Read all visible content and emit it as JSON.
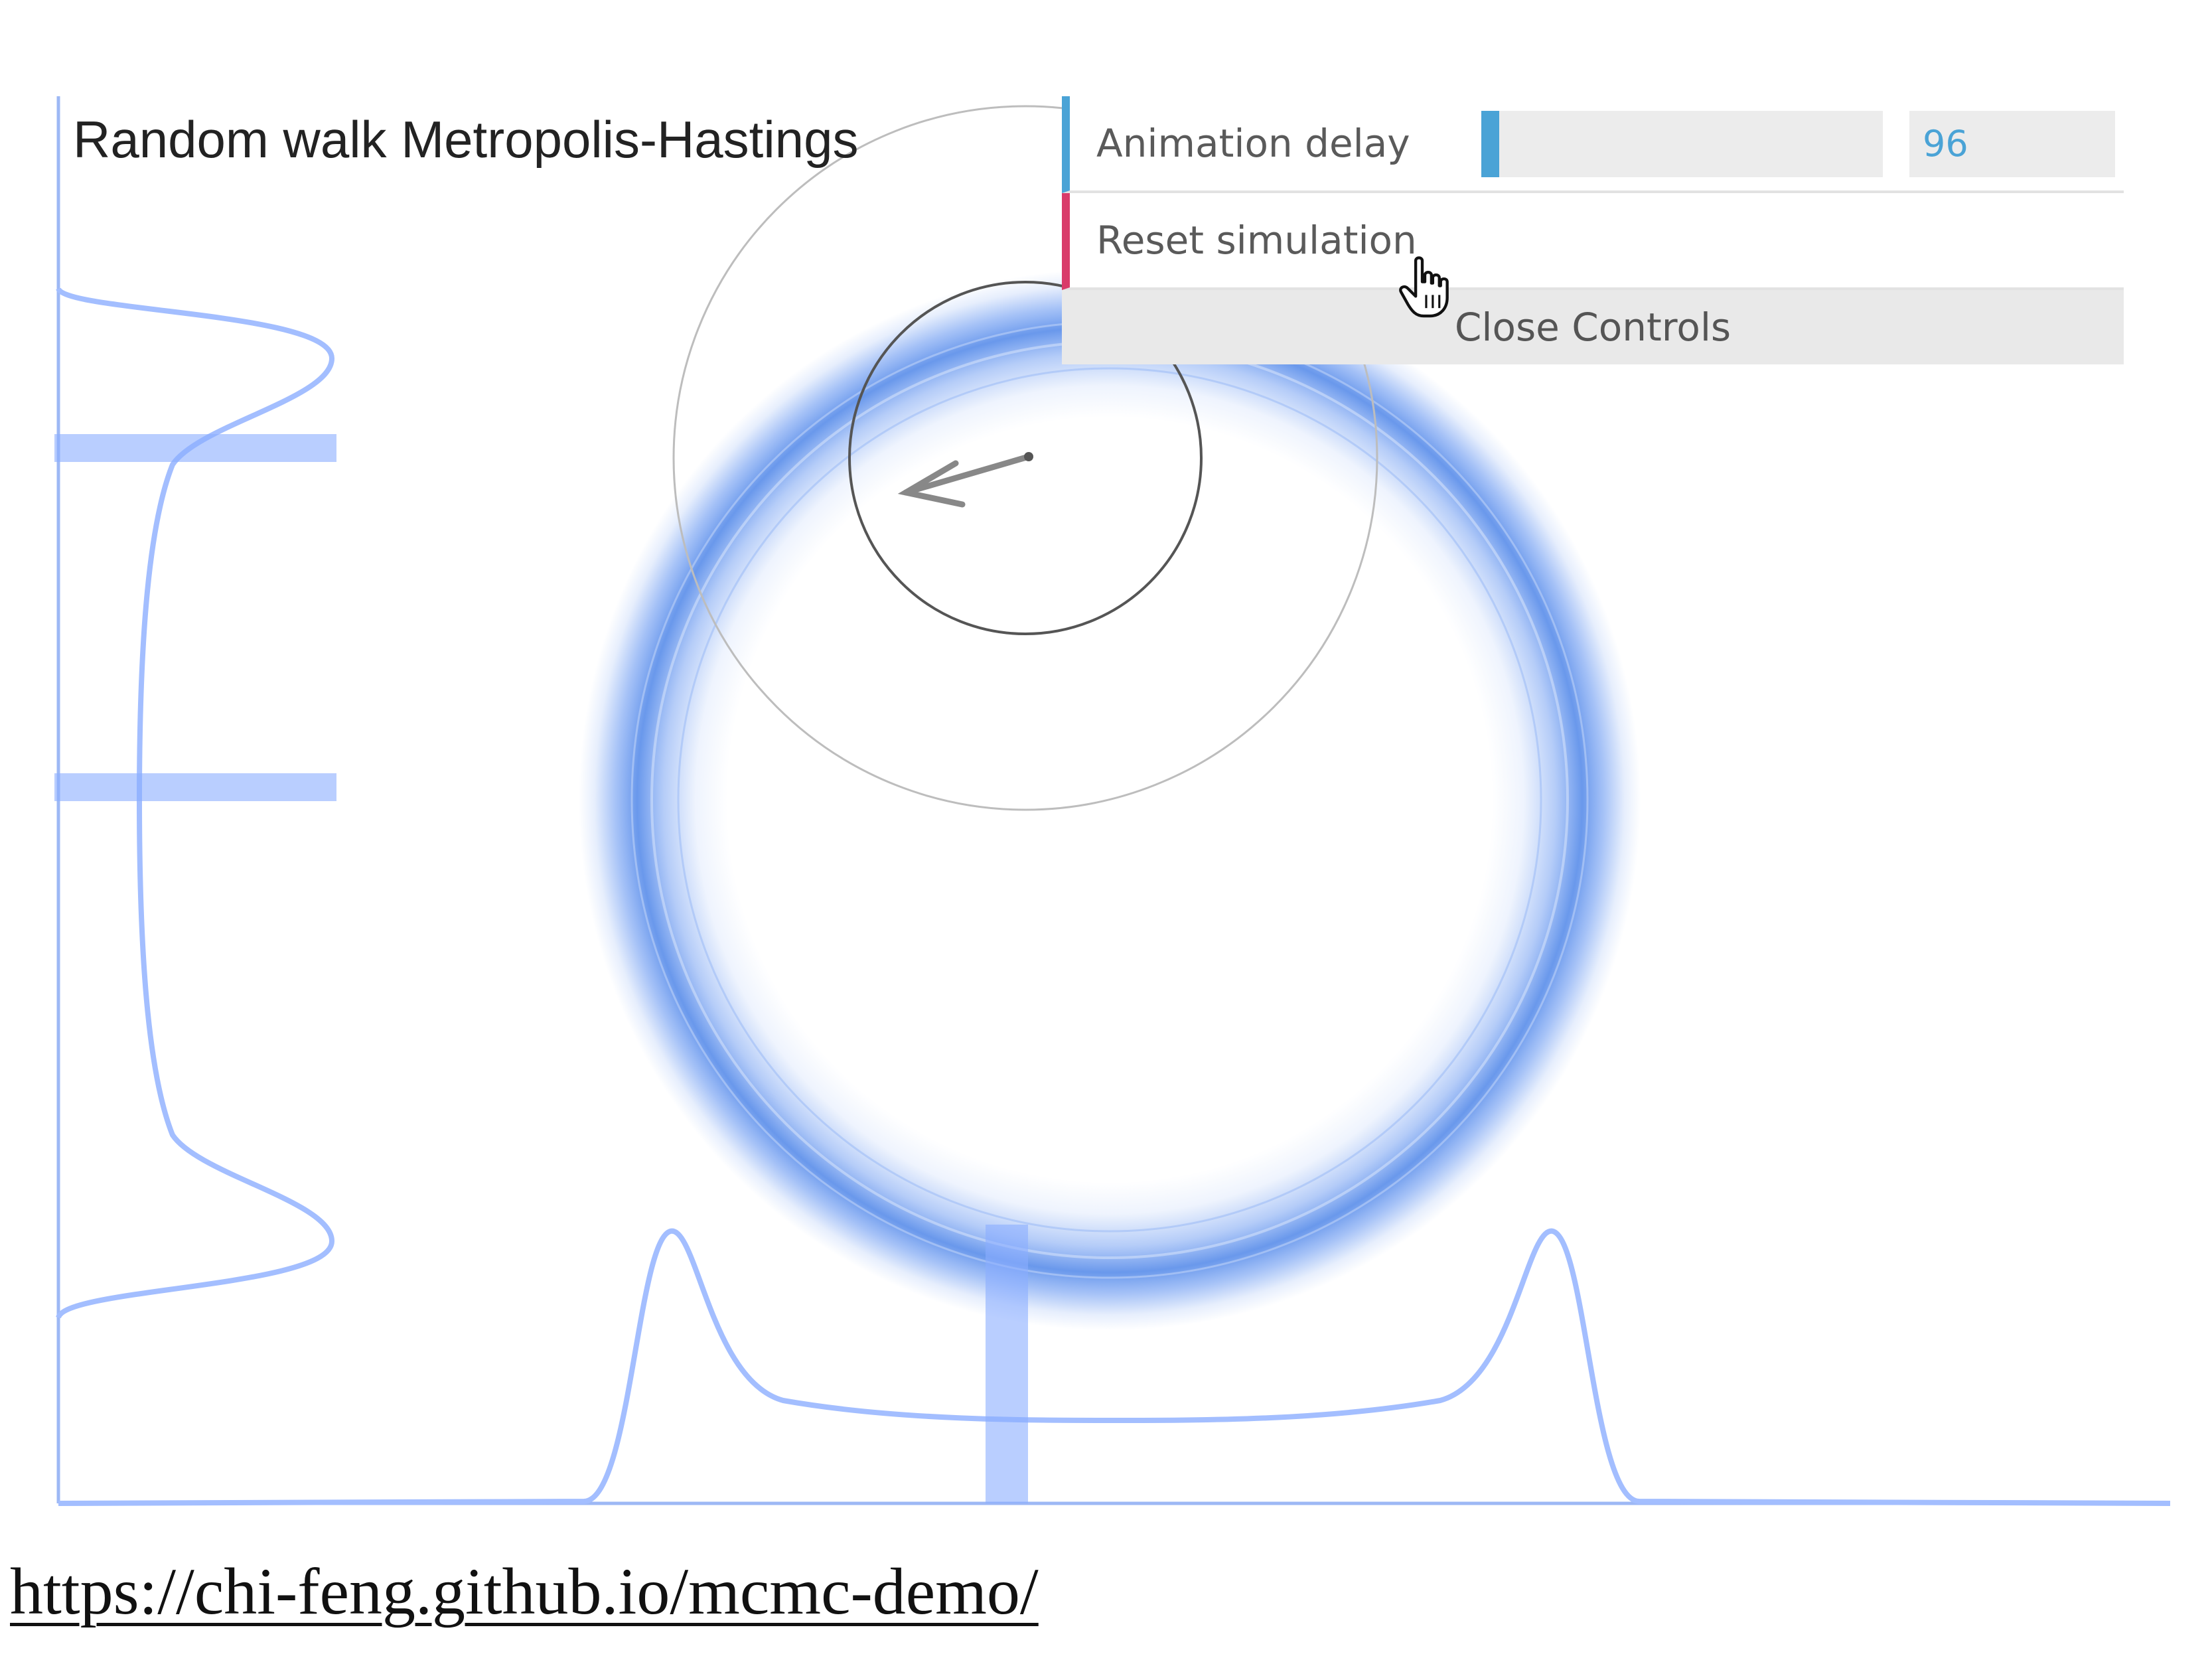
{
  "visualization": {
    "title": "Random walk Metropolis-Hastings",
    "accent_color": "#5b8ff0",
    "target_shape": "ring",
    "marginal_x_peaks": 2,
    "marginal_y_peaks": 2,
    "proposal_arrow_icon": "arrow-icon"
  },
  "controls": {
    "animation_delay": {
      "label": "Animation delay",
      "value": "96",
      "fraction": 0.045,
      "color": "#4aa3d6"
    },
    "reset": {
      "label": "Reset simulation",
      "color": "#d93b6a"
    },
    "close_label": "Close Controls"
  },
  "cursor_icon": "hand-pointer-icon",
  "footer": {
    "url": "https://chi-feng.github.io/mcmc-demo/"
  }
}
